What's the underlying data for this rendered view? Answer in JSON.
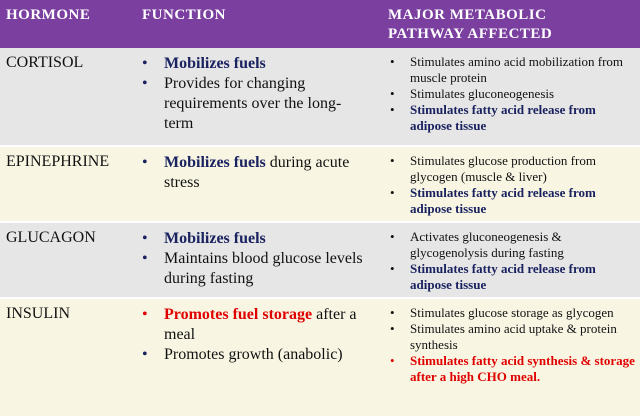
{
  "header": {
    "hormone": "HORMONE",
    "function": "FUNCTION",
    "pathway_line1": "MAJOR METABOLIC",
    "pathway_line2": "PATHWAY AFFECTED"
  },
  "rows": [
    {
      "hormone": "CORTISOL",
      "f1_bold": "Mobilizes fuels",
      "f2": "Provides for changing requirements over the long-term",
      "p1": "Stimulates amino acid mobilization from muscle protein",
      "p2": "Stimulates gluconeogenesis",
      "p3": "Stimulates fatty acid release from adipose tissue"
    },
    {
      "hormone": "EPINEPHRINE",
      "f1_bold": "Mobilizes fuels",
      "f1_rest": " during acute stress",
      "p1": "Stimulates glucose production from glycogen (muscle & liver)",
      "p2": "Stimulates fatty acid release from adipose tissue"
    },
    {
      "hormone": "GLUCAGON",
      "f1_bold": "Mobilizes fuels",
      "f2": "Maintains blood glucose levels during fasting",
      "p1": "Activates gluconeogenesis & glycogenolysis during fasting",
      "p2": "Stimulates fatty acid release from adipose tissue"
    },
    {
      "hormone": "INSULIN",
      "f1_bold": "Promotes fuel storage",
      "f1_rest": " after a meal",
      "f2": "Promotes growth (anabolic)",
      "p1": "Stimulates glucose storage as glycogen",
      "p2": "Stimulates amino acid uptake & protein synthesis",
      "p3": "Stimulates fatty acid synthesis & storage after a high CHO meal."
    }
  ],
  "colors": {
    "header_bg": "#7b3fa0",
    "navy": "#1a2260",
    "red": "#e00000",
    "row_gray": "#e6e6e6",
    "row_cream": "#f8f6e3"
  }
}
